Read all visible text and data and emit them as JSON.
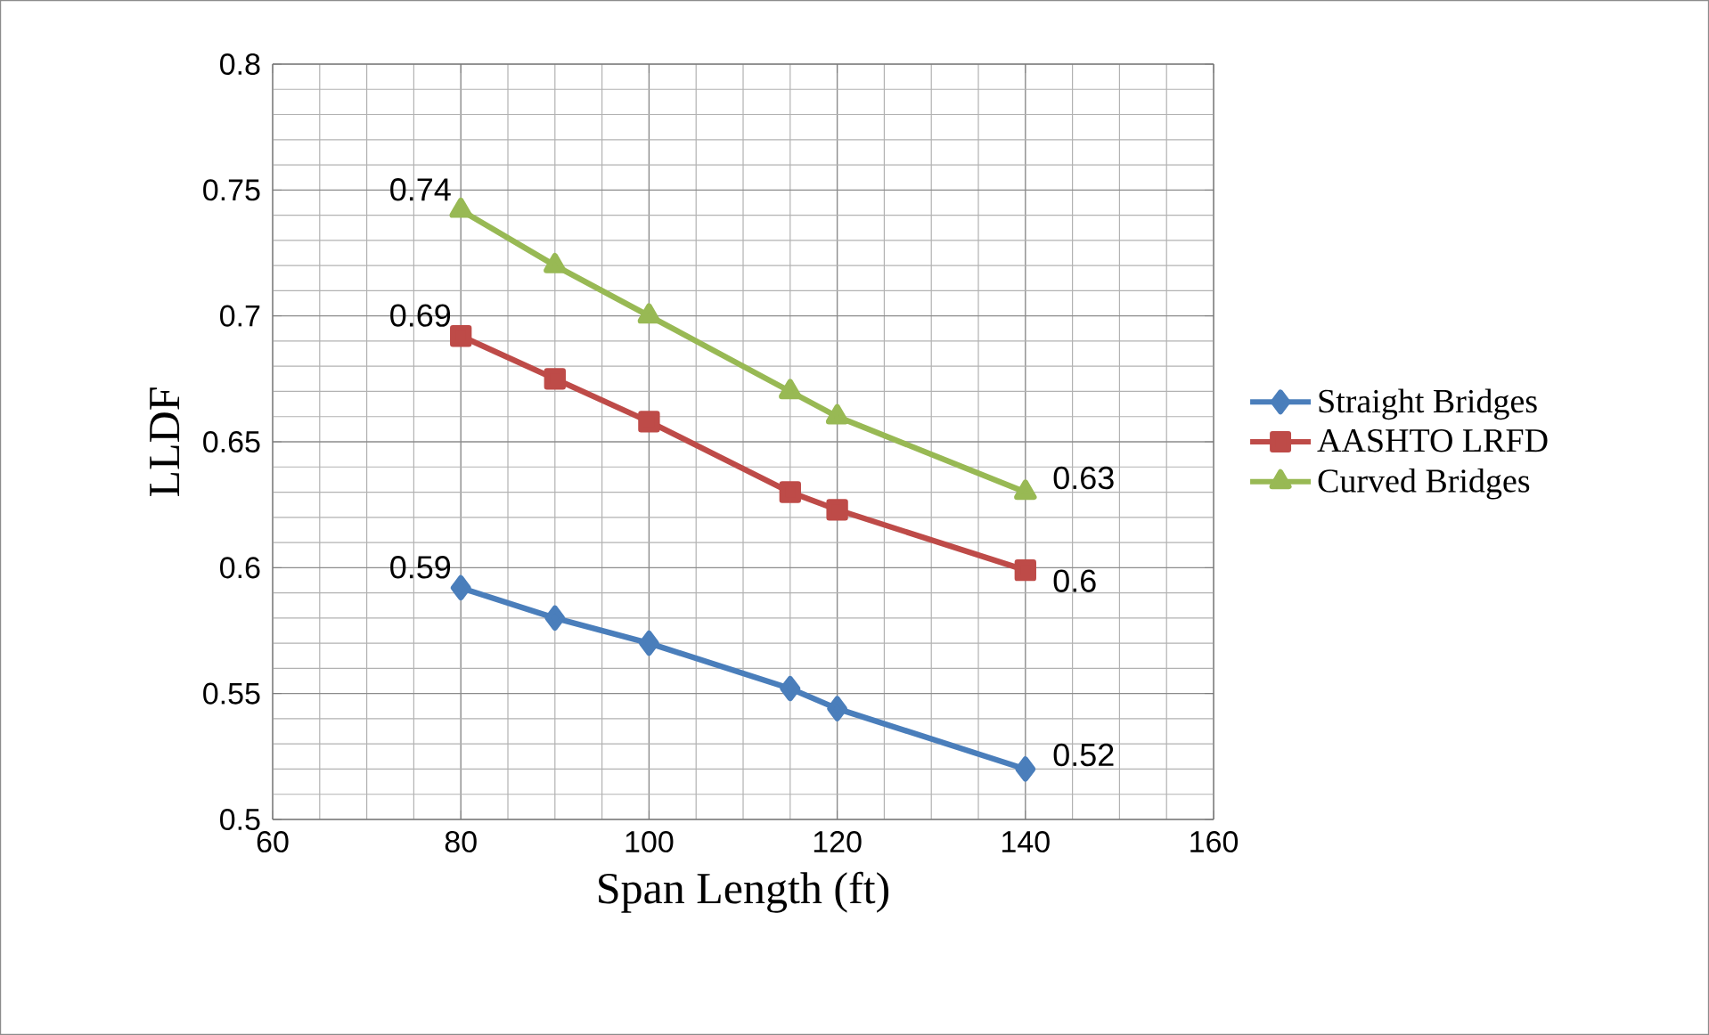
{
  "chart_data": {
    "type": "line",
    "xlabel": "Span Length (ft)",
    "ylabel": "LLDF",
    "x": [
      80,
      90,
      100,
      115,
      120,
      140
    ],
    "series": [
      {
        "name": "Straight Bridges",
        "color": "#4a7ebb",
        "marker": "diamond",
        "values": [
          0.592,
          0.58,
          0.57,
          0.552,
          0.544,
          0.52
        ],
        "value_labels": [
          "0.59",
          null,
          null,
          null,
          null,
          "0.52"
        ]
      },
      {
        "name": "AASHTO LRFD",
        "color": "#be4b48",
        "marker": "square",
        "values": [
          0.692,
          0.675,
          0.658,
          0.63,
          0.623,
          0.599
        ],
        "value_labels": [
          "0.69",
          null,
          null,
          null,
          null,
          "0.6"
        ]
      },
      {
        "name": "Curved Bridges",
        "color": "#98b954",
        "marker": "triangle",
        "values": [
          0.742,
          0.72,
          0.7,
          0.67,
          0.66,
          0.63
        ],
        "value_labels": [
          "0.74",
          null,
          null,
          null,
          null,
          "0.63"
        ]
      }
    ],
    "xlim": [
      60,
      160
    ],
    "xticks": [
      60,
      80,
      100,
      120,
      140,
      160
    ],
    "ylim": [
      0.5,
      0.8
    ],
    "yticks": [
      0.5,
      0.55,
      0.6,
      0.65,
      0.7,
      0.75,
      0.8
    ],
    "grid": true,
    "legend": "right"
  }
}
